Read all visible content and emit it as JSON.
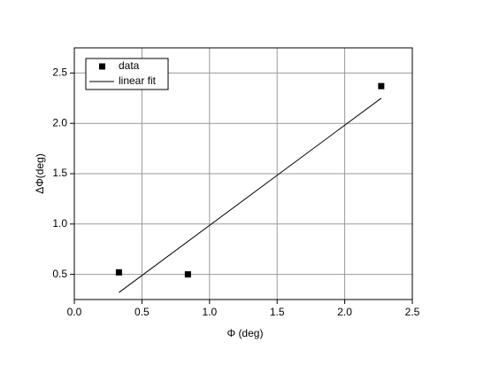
{
  "chart_data": {
    "type": "scatter",
    "xlabel": "Φ (deg)",
    "ylabel": "ΔΦ(deg)",
    "series": [
      {
        "name": "data",
        "color": "#000000",
        "mode": "markers",
        "x": [
          0.33,
          0.84,
          2.27
        ],
        "values": [
          0.52,
          0.5,
          2.37
        ]
      },
      {
        "name": "linear fit",
        "color": "#000000",
        "mode": "line",
        "x": [
          0.33,
          2.27
        ],
        "values": [
          0.32,
          2.25
        ]
      }
    ],
    "xlim": [
      0,
      2.5
    ],
    "xticks": [
      {
        "value": 0,
        "label": "0.0"
      },
      0.5,
      {
        "value": 1,
        "label": "1.0"
      },
      1.5,
      {
        "value": 2,
        "label": "2.0"
      },
      2.5
    ],
    "ylim": [
      0.25,
      2.75
    ],
    "yticks": [
      0.5,
      {
        "value": 1,
        "label": "1.0"
      },
      1.5,
      {
        "value": 2,
        "label": "2.0"
      },
      2.5
    ],
    "grid": true,
    "legend": "upper left"
  }
}
